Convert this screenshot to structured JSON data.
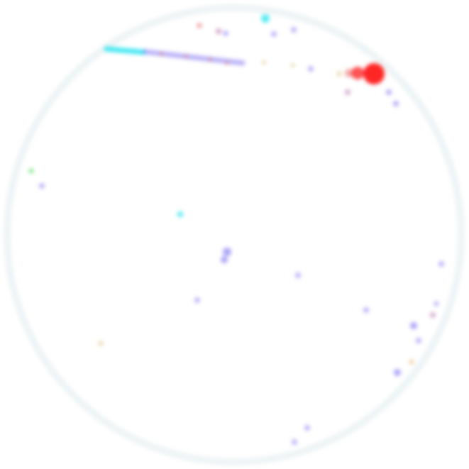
{
  "colors": {
    "background": "#ffffff",
    "ring": "#eef4f6",
    "interior": "#ffffff",
    "blue": "#6a5cf0",
    "blue_dim": "#8a7ff2",
    "red": "#ff1a1a",
    "red_dim": "#e86a6a",
    "cyan": "#33e6f0",
    "green": "#3ad83a",
    "yellow": "#d8c27a",
    "orange": "#f0b070",
    "pink": "#b060a0"
  }
}
